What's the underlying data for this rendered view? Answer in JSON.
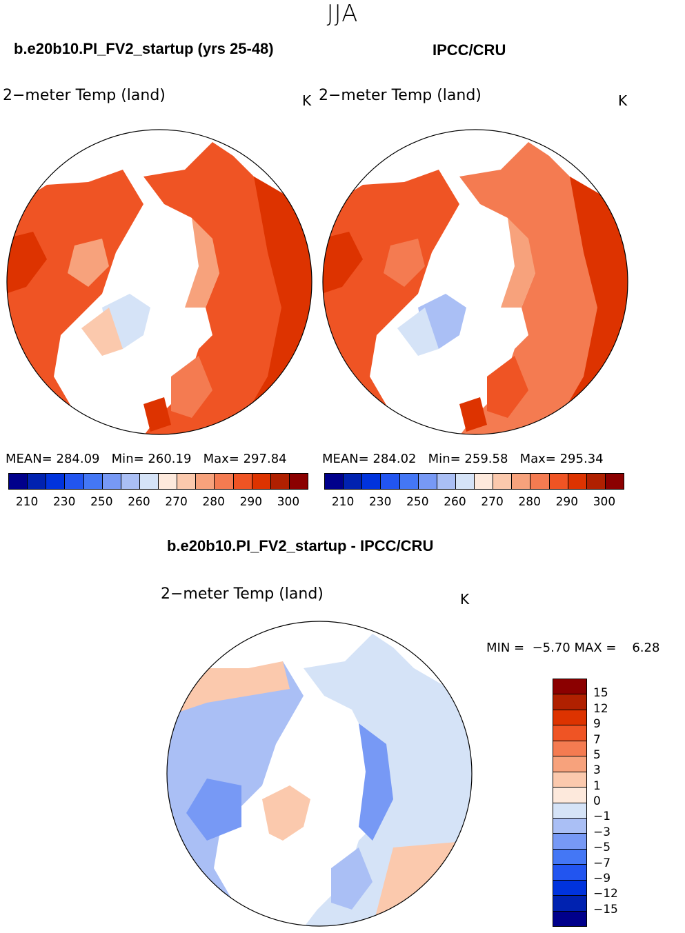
{
  "season": "JJA",
  "panels": {
    "model": {
      "title": "b.e20b10.PI_FV2_startup (yrs 25-48)",
      "variable": "2−meter Temp (land)",
      "unit": "K",
      "stats": {
        "mean_label": "MEAN=",
        "mean": "284.09",
        "min_label": "Min=",
        "min": "260.19",
        "max_label": "Max=",
        "max": "297.84"
      }
    },
    "obs": {
      "title": "IPCC/CRU",
      "variable": "2−meter Temp (land)",
      "unit": "K",
      "stats": {
        "mean_label": "MEAN=",
        "mean": "284.02",
        "min_label": "Min=",
        "min": "259.58",
        "max_label": "Max=",
        "max": "295.34"
      }
    },
    "diff": {
      "title": "b.e20b10.PI_FV2_startup - IPCC/CRU",
      "variable": "2−meter Temp (land)",
      "unit": "K",
      "stats": {
        "min_label": "MIN =",
        "min": "−5.70",
        "max_label": "MAX =",
        "max": "6.28"
      }
    }
  },
  "abs_colorbar": {
    "colors": [
      "#00008b",
      "#0022b0",
      "#0033dd",
      "#2255f0",
      "#4477f5",
      "#7799f5",
      "#aabff5",
      "#d5e3f7",
      "#fde9dc",
      "#fbc9ad",
      "#f7a27c",
      "#f47b51",
      "#ef5424",
      "#dd3300",
      "#b02000",
      "#8b0000"
    ],
    "ticks": [
      "210",
      "230",
      "250",
      "260",
      "270",
      "280",
      "290",
      "300"
    ]
  },
  "diff_colorbar": {
    "colors": [
      "#8b0000",
      "#b02000",
      "#dd3300",
      "#ef5424",
      "#f47b51",
      "#f7a27c",
      "#fbc9ad",
      "#fde9dc",
      "#d5e3f7",
      "#aabff5",
      "#7799f5",
      "#4477f5",
      "#2255f0",
      "#0033dd",
      "#0022b0",
      "#00008b"
    ],
    "ticks": [
      "15",
      "12",
      "9",
      "7",
      "5",
      "3",
      "1",
      "0",
      "−1",
      "−3",
      "−5",
      "−7",
      "−9",
      "−12",
      "−15"
    ]
  },
  "map_colors": {
    "ocean": "#ffffff",
    "warm_dark": "#dd3300",
    "warm": "#ef5424",
    "warm_mid": "#f47b51",
    "warm_light": "#f7a27c",
    "cool_light": "#d5e3f7",
    "cool": "#aabff5",
    "cool_mid": "#7799f5",
    "diff_warm": "#fbc9ad"
  }
}
